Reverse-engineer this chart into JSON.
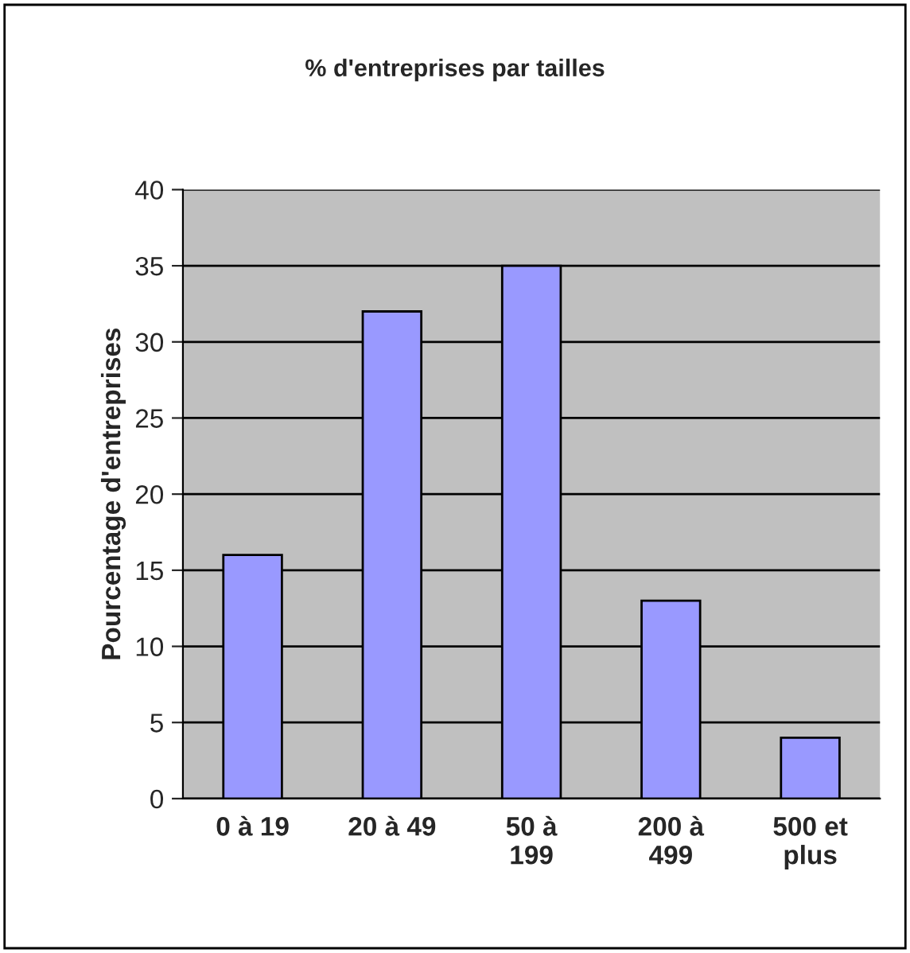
{
  "chart_data": {
    "type": "bar",
    "title": "% d'entreprises par tailles",
    "ylabel": "Pourcentage d'entreprises",
    "categories": [
      "0 à 19",
      "20 à 49",
      "50 à\n199",
      "200 à\n499",
      "500 et\nplus"
    ],
    "values": [
      16,
      32,
      35,
      13,
      4
    ],
    "color": "#9999ff",
    "ylim": [
      0,
      40
    ],
    "yticks": [
      0,
      5,
      10,
      15,
      20,
      25,
      30,
      35,
      40
    ],
    "grid": "y",
    "legend": false
  }
}
